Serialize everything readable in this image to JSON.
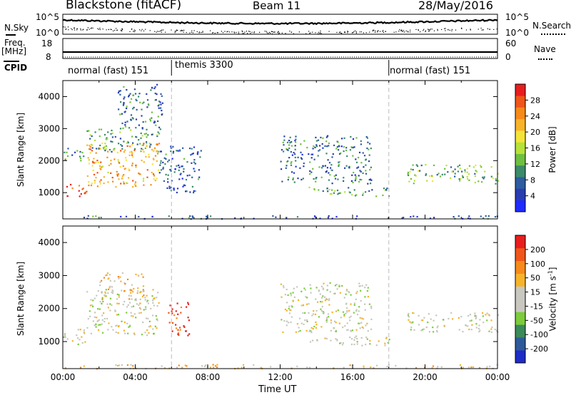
{
  "header": {
    "station": "Blackstone (fitACF)",
    "beam": "Beam 11",
    "date": "28/May/2016"
  },
  "noise_panel": {
    "left_label": "N.Sky",
    "right_label": "N.Search",
    "left_top_tick": "10^5",
    "left_bottom_tick": "10^0",
    "right_top_tick": "10^5",
    "right_bottom_tick": "10^0"
  },
  "freq_panel": {
    "left_label_line1": "Freq.",
    "left_label_line2": "[MHz]",
    "right_label": "Nave",
    "left_top_tick": "18",
    "left_bottom_tick": "8",
    "right_top_tick": "60",
    "right_bottom_tick": "0"
  },
  "cpid_panel": {
    "label": "CPID",
    "segments": [
      {
        "text": "normal (fast) 151",
        "start_hour": 0
      },
      {
        "text": "themis 3300",
        "start_hour": 6
      },
      {
        "text": "normal (fast) 151",
        "start_hour": 18
      }
    ]
  },
  "chart_data": [
    {
      "type": "heatmap",
      "name": "power",
      "ylabel": "Slant Range [km]",
      "yticks": [
        1000,
        2000,
        3000,
        4000
      ],
      "ylim": [
        180,
        4500
      ],
      "xlim_hours": [
        0,
        24
      ],
      "colorbar": {
        "label": "Power [dB]",
        "ticks": [
          "4",
          "8",
          "12",
          "16",
          "20",
          "24",
          "28"
        ],
        "colors": [
          "#1f2bff",
          "#2a3db0",
          "#2d5ca0",
          "#3b8a6a",
          "#6fbf40",
          "#b6e23a",
          "#f5e33a",
          "#f7b42a",
          "#f78a1a",
          "#f0561a",
          "#e81e1e"
        ]
      },
      "bands": [
        {
          "hour_start": 0.0,
          "hour_end": 1.3,
          "range_start": 900,
          "range_end": 1300,
          "level": 0.9
        },
        {
          "hour_start": 1.3,
          "hour_end": 5.3,
          "range_start": 1200,
          "range_end": 2600,
          "level": 0.7
        },
        {
          "hour_start": 0.0,
          "hour_end": 1.3,
          "range_start": 2000,
          "range_end": 2400,
          "level": 0.3
        },
        {
          "hour_start": 1.3,
          "hour_end": 5.3,
          "range_start": 2300,
          "range_end": 3000,
          "level": 0.35
        },
        {
          "hour_start": 5.3,
          "hour_end": 7.6,
          "range_start": 1000,
          "range_end": 2500,
          "level": 0.2
        },
        {
          "hour_start": 12.0,
          "hour_end": 17.0,
          "range_start": 1300,
          "range_end": 2800,
          "level": 0.25
        },
        {
          "hour_start": 13.5,
          "hour_end": 18.0,
          "range_start": 900,
          "range_end": 1200,
          "level": 0.35
        },
        {
          "hour_start": 19.0,
          "hour_end": 24.0,
          "range_start": 1300,
          "range_end": 1900,
          "level": 0.4
        },
        {
          "hour_start": 3.0,
          "hour_end": 5.5,
          "range_start": 3000,
          "range_end": 4400,
          "level": 0.25
        },
        {
          "hour_start": 0.0,
          "hour_end": 24.0,
          "range_start": 200,
          "range_end": 300,
          "level": 0.2
        }
      ]
    },
    {
      "type": "heatmap",
      "name": "velocity",
      "ylabel": "Slant Range [km]",
      "xlabel": "Time UT",
      "yticks": [
        1000,
        2000,
        3000,
        4000
      ],
      "ylim": [
        180,
        4500
      ],
      "xlim_hours": [
        0,
        24
      ],
      "xticks": [
        "00:00",
        "04:00",
        "08:00",
        "12:00",
        "16:00",
        "20:00",
        "00:00"
      ],
      "colorbar": {
        "label": "Velocity [m s^-1]",
        "ticks": [
          "200",
          "100",
          "50",
          "15",
          "-15",
          "-50",
          "-100",
          "-200"
        ],
        "colors": [
          "#1e2cc8",
          "#2e5a9a",
          "#3b8a5a",
          "#7ccc3c",
          "#c8c8c0",
          "#c8c8c0",
          "#f7b42a",
          "#f78a1a",
          "#f0561a",
          "#e81e1e"
        ]
      },
      "bands": [
        {
          "hour_start": 0.0,
          "hour_end": 1.3,
          "range_start": 900,
          "range_end": 1400,
          "level": 0.5
        },
        {
          "hour_start": 1.3,
          "hour_end": 5.3,
          "range_start": 1200,
          "range_end": 2600,
          "level": 0.5
        },
        {
          "hour_start": 2.0,
          "hour_end": 4.5,
          "range_start": 2300,
          "range_end": 3100,
          "level": 0.65
        },
        {
          "hour_start": 5.8,
          "hour_end": 7.0,
          "range_start": 1200,
          "range_end": 2200,
          "level": 0.9
        },
        {
          "hour_start": 12.0,
          "hour_end": 17.0,
          "range_start": 1300,
          "range_end": 2800,
          "level": 0.5
        },
        {
          "hour_start": 13.5,
          "hour_end": 18.0,
          "range_start": 900,
          "range_end": 1200,
          "level": 0.5
        },
        {
          "hour_start": 19.0,
          "hour_end": 24.0,
          "range_start": 1300,
          "range_end": 1900,
          "level": 0.5
        },
        {
          "hour_start": 0.0,
          "hour_end": 24.0,
          "range_start": 200,
          "range_end": 320,
          "level": 0.62
        }
      ]
    }
  ]
}
